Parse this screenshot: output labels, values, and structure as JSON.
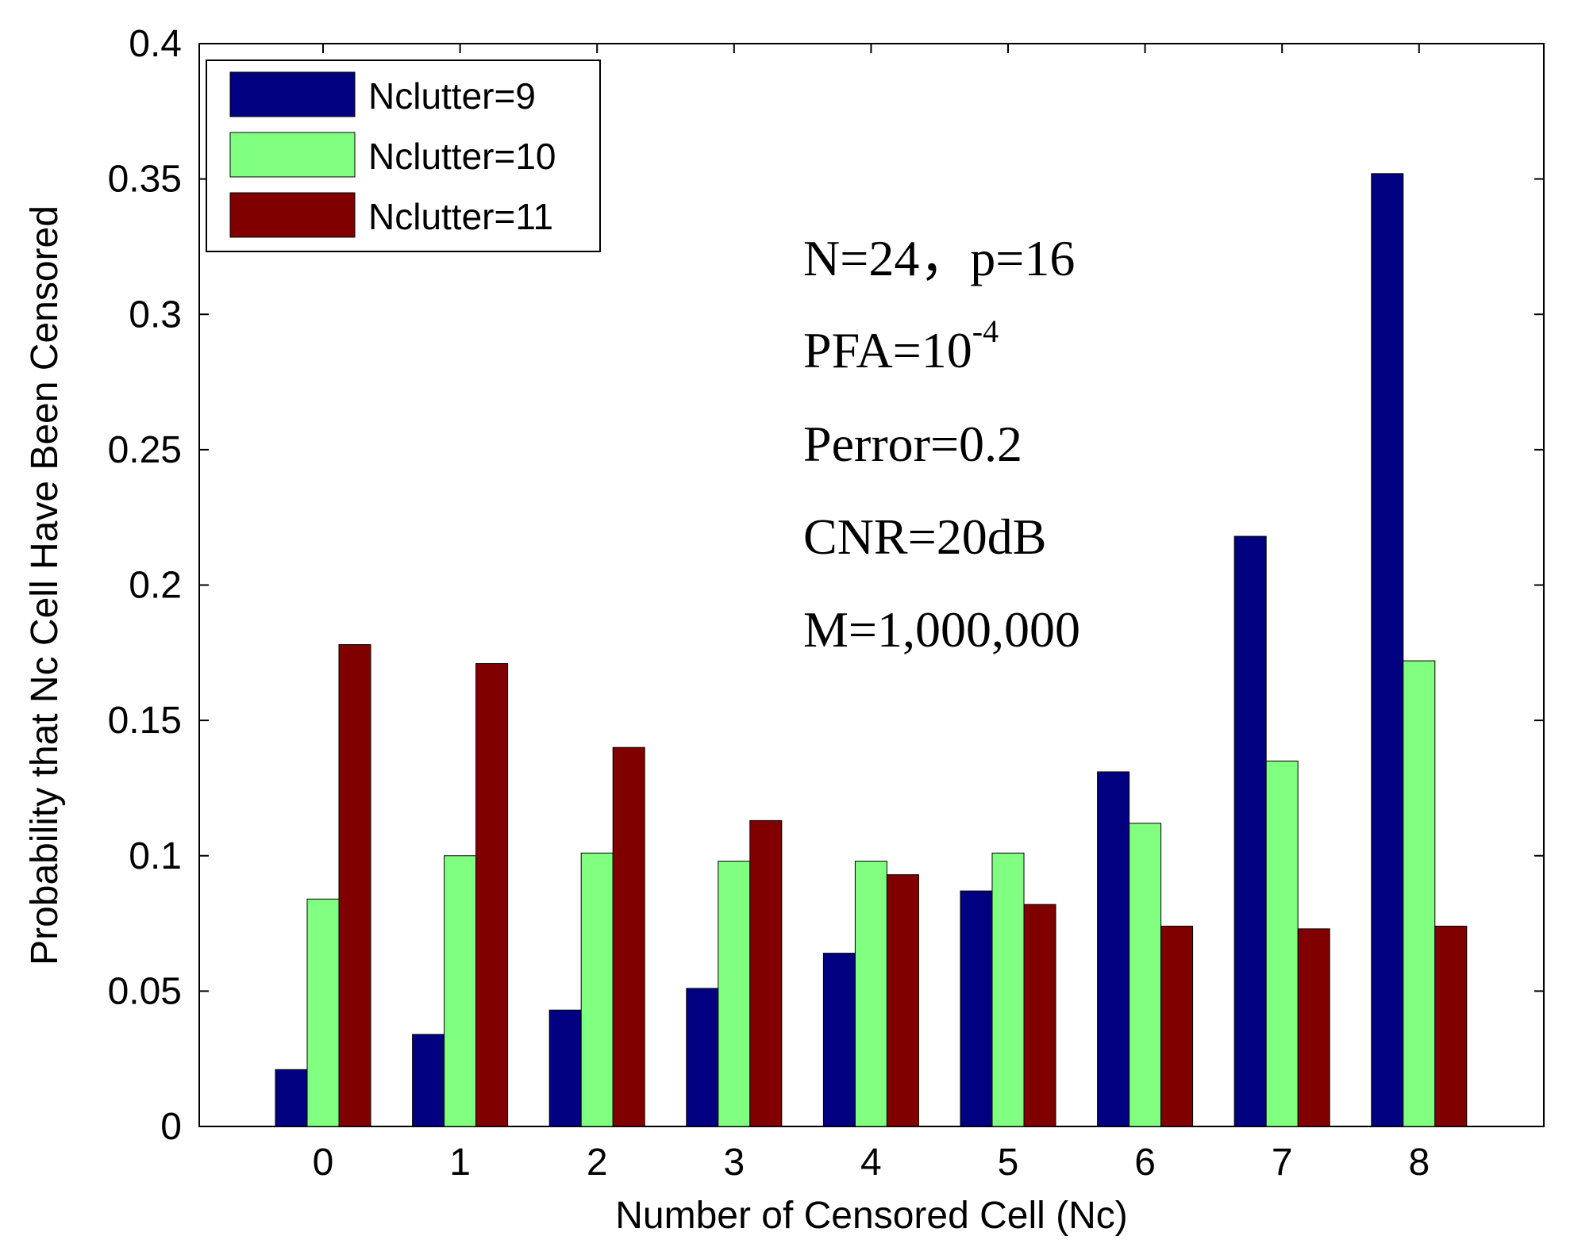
{
  "chart_data": {
    "type": "bar",
    "title": "",
    "xlabel": "Number of Censored Cell (Nc)",
    "ylabel": "Probability that Nc Cell Have Been Censored",
    "categories": [
      "0",
      "1",
      "2",
      "3",
      "4",
      "5",
      "6",
      "7",
      "8"
    ],
    "ylim": [
      0,
      0.4
    ],
    "yticks": [
      "0",
      "0.05",
      "0.1",
      "0.15",
      "0.2",
      "0.25",
      "0.3",
      "0.35",
      "0.4"
    ],
    "grid": false,
    "legend_position": "top-left",
    "series": [
      {
        "name": "Nclutter=9",
        "color": "#000080",
        "values": [
          0.021,
          0.034,
          0.043,
          0.051,
          0.064,
          0.087,
          0.131,
          0.218,
          0.352
        ]
      },
      {
        "name": "Nclutter=10",
        "color": "#80ff80",
        "values": [
          0.084,
          0.1,
          0.101,
          0.098,
          0.098,
          0.101,
          0.112,
          0.135,
          0.172
        ]
      },
      {
        "name": "Nclutter=11",
        "color": "#800000",
        "values": [
          0.178,
          0.171,
          0.14,
          0.113,
          0.093,
          0.082,
          0.074,
          0.073,
          0.074
        ]
      }
    ],
    "annotations": {
      "line1": "N=24，p=16",
      "pfa_base": "PFA=10",
      "pfa_exp": "-4",
      "line3": "Perror=0.2",
      "line4": "CNR=20dB",
      "line5": "M=1,000,000"
    }
  }
}
